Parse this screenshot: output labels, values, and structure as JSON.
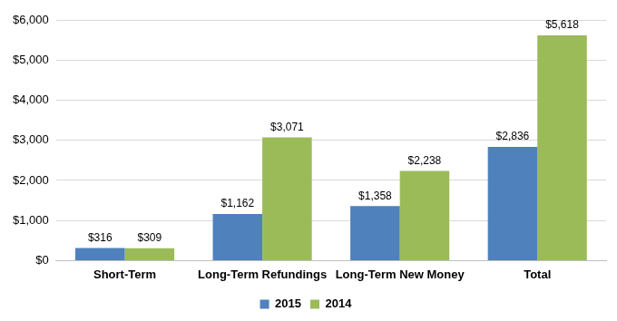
{
  "chart_data": {
    "type": "bar",
    "categories": [
      "Short-Term",
      "Long-Term Refundings",
      "Long-Term New Money",
      "Total"
    ],
    "series": [
      {
        "name": "2015",
        "color": "#4f81bd",
        "values": [
          316,
          1162,
          1358,
          2836
        ],
        "value_labels": [
          "$316",
          "$1,162",
          "$1,358",
          "$2,836"
        ]
      },
      {
        "name": "2014",
        "color": "#9bbb59",
        "values": [
          309,
          3071,
          2238,
          5618
        ],
        "value_labels": [
          "$309",
          "$3,071",
          "$2,238",
          "$5,618"
        ]
      }
    ],
    "ylim": [
      0,
      6000
    ],
    "yticks": [
      {
        "value": 0,
        "label": "$0"
      },
      {
        "value": 1000,
        "label": "$1,000"
      },
      {
        "value": 2000,
        "label": "$2,000"
      },
      {
        "value": 3000,
        "label": "$3,000"
      },
      {
        "value": 4000,
        "label": "$4,000"
      },
      {
        "value": 5000,
        "label": "$5,000"
      },
      {
        "value": 6000,
        "label": "$6,000"
      }
    ],
    "grid": true,
    "legend": "bottom",
    "data_labels": true
  }
}
